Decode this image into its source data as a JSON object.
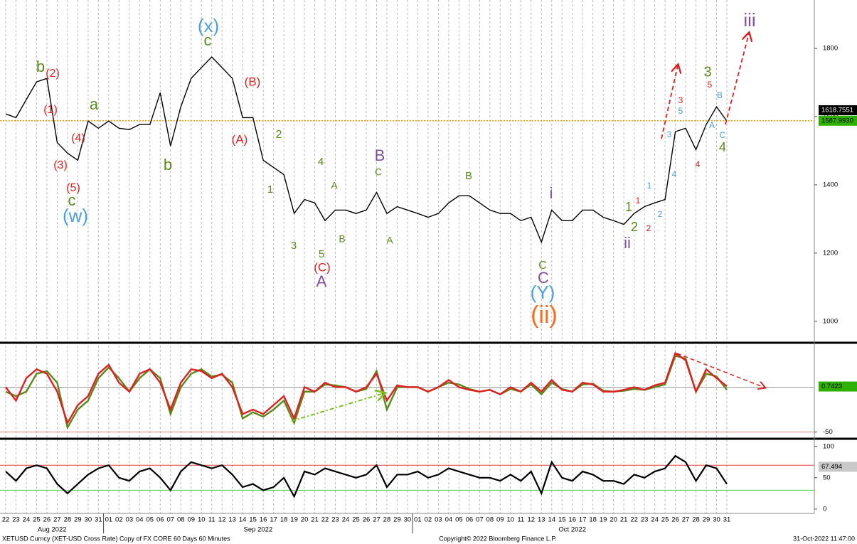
{
  "footer": {
    "left": "XETUSD Curncy (XET-USD Cross Rate) Copy of FX CORE 60 Days 60 Minutes",
    "center": "Copyright© 2022 Bloomberg Finance L.P.",
    "right": "31-Oct-2022 11:47:00"
  },
  "chart_data": [
    {
      "type": "line",
      "categories": [
        "22",
        "23",
        "24",
        "25",
        "26",
        "27",
        "28",
        "29",
        "30",
        "31",
        "01",
        "02",
        "03",
        "04",
        "05",
        "06",
        "07",
        "08",
        "09",
        "10",
        "11",
        "12",
        "13",
        "14",
        "15",
        "16",
        "17",
        "18",
        "19",
        "20",
        "21",
        "22",
        "23",
        "24",
        "25",
        "26",
        "27",
        "28",
        "29",
        "30",
        "01",
        "02",
        "03",
        "04",
        "05",
        "06",
        "07",
        "08",
        "09",
        "10",
        "11",
        "12",
        "13",
        "14",
        "15",
        "16",
        "17",
        "18",
        "19",
        "20",
        "21",
        "22",
        "23",
        "24",
        "25",
        "26",
        "27",
        "28",
        "29",
        "30",
        "31"
      ],
      "months": [
        "Aug 2022",
        "Sep 2022",
        "Oct 2022"
      ],
      "values": [
        1608,
        1597,
        1650,
        1702,
        1712,
        1524,
        1493,
        1472,
        1587,
        1566,
        1587,
        1566,
        1562,
        1577,
        1577,
        1670,
        1514,
        1629,
        1712,
        1744,
        1775,
        1744,
        1712,
        1597,
        1597,
        1472,
        1451,
        1430,
        1316,
        1357,
        1347,
        1295,
        1326,
        1326,
        1316,
        1326,
        1378,
        1316,
        1336,
        1326,
        1316,
        1305,
        1316,
        1347,
        1368,
        1368,
        1347,
        1326,
        1316,
        1316,
        1295,
        1305,
        1232,
        1326,
        1295,
        1295,
        1326,
        1326,
        1305,
        1295,
        1284,
        1316,
        1336,
        1347,
        1357,
        1556,
        1566,
        1503,
        1577,
        1629,
        1587
      ],
      "color": "#000000",
      "ylim": [
        939,
        1942
      ],
      "yticks": [
        1000,
        1200,
        1400,
        1600,
        1800
      ],
      "grid": true,
      "price_labels": [
        {
          "value": 1618.7551,
          "label": "1618.7551",
          "color": "#000000"
        },
        {
          "value": 1587.993,
          "label": "1587.9930",
          "color": "#2db000"
        }
      ],
      "level_color": "#f0a000",
      "annotations": [
        {
          "text": "(x)",
          "color": "#4aa0e0"
        },
        {
          "text": "c",
          "color": "#5a8a1a"
        },
        {
          "text": "b",
          "color": "#5a8a1a"
        },
        {
          "text": "(2)",
          "color": "#e02020"
        },
        {
          "text": "(1)",
          "color": "#e02020"
        },
        {
          "text": "(4)",
          "color": "#e02020"
        },
        {
          "text": "(3)",
          "color": "#e02020"
        },
        {
          "text": "(5)",
          "color": "#e02020"
        },
        {
          "text": "c",
          "color": "#5a8a1a"
        },
        {
          "text": "(w)",
          "color": "#4aa0e0"
        },
        {
          "text": "a",
          "color": "#5a8a1a"
        },
        {
          "text": "b",
          "color": "#5a8a1a"
        },
        {
          "text": "(B)",
          "color": "#e02020"
        },
        {
          "text": "(A)",
          "color": "#e02020"
        },
        {
          "text": "2",
          "color": "#5a8a1a"
        },
        {
          "text": "1",
          "color": "#5a8a1a"
        },
        {
          "text": "3",
          "color": "#5a8a1a"
        },
        {
          "text": "4",
          "color": "#5a8a1a"
        },
        {
          "text": "5",
          "color": "#5a8a1a"
        },
        {
          "text": "(C)",
          "color": "#e02020"
        },
        {
          "text": "A",
          "color": "#8050a0"
        },
        {
          "text": "A",
          "color": "#5a8a1a"
        },
        {
          "text": "B",
          "color": "#5a8a1a"
        },
        {
          "text": "B",
          "color": "#8050a0"
        },
        {
          "text": "C",
          "color": "#5a8a1a"
        },
        {
          "text": "A",
          "color": "#5a8a1a"
        },
        {
          "text": "B",
          "color": "#5a8a1a"
        },
        {
          "text": "i",
          "color": "#8050a0"
        },
        {
          "text": "C",
          "color": "#5a8a1a"
        },
        {
          "text": "C",
          "color": "#8050a0"
        },
        {
          "text": "(Y)",
          "color": "#4aa0e0"
        },
        {
          "text": "(ii)",
          "color": "#ff6a1a"
        },
        {
          "text": "1",
          "color": "#5a8a1a"
        },
        {
          "text": "2",
          "color": "#5a8a1a"
        },
        {
          "text": "1",
          "color": "#e02020"
        },
        {
          "text": "2",
          "color": "#e02020"
        },
        {
          "text": "1",
          "color": "#4aa0e0"
        },
        {
          "text": "2",
          "color": "#4aa0e0"
        },
        {
          "text": "ii",
          "color": "#8050a0"
        },
        {
          "text": "3",
          "color": "#4aa0e0"
        },
        {
          "text": "4",
          "color": "#4aa0e0"
        },
        {
          "text": "3",
          "color": "#e02020"
        },
        {
          "text": "5",
          "color": "#4aa0e0"
        },
        {
          "text": "4",
          "color": "#e02020"
        },
        {
          "text": "5",
          "color": "#e02020"
        },
        {
          "text": "3",
          "color": "#5a8a1a"
        },
        {
          "text": "B",
          "color": "#4aa0e0"
        },
        {
          "text": "A",
          "color": "#4aa0e0"
        },
        {
          "text": "C",
          "color": "#4aa0e0"
        },
        {
          "text": "4",
          "color": "#5a8a1a"
        },
        {
          "text": "iii",
          "color": "#8050a0"
        }
      ]
    },
    {
      "type": "line",
      "series": [
        {
          "color": "#5a8a1a",
          "values": [
            -5,
            -10,
            -5,
            15,
            18,
            5,
            -45,
            -25,
            -15,
            10,
            22,
            10,
            -5,
            10,
            20,
            10,
            -30,
            0,
            15,
            20,
            12,
            14,
            5,
            -35,
            -28,
            -33,
            -25,
            -15,
            -40,
            -5,
            -5,
            3,
            2,
            0,
            -5,
            -2,
            18,
            -25,
            0,
            0,
            0,
            -5,
            0,
            5,
            3,
            -2,
            -5,
            -3,
            -8,
            -2,
            -5,
            3,
            -8,
            5,
            -2,
            -5,
            3,
            4,
            -4,
            -5,
            -4,
            -2,
            -3,
            0,
            3,
            35,
            32,
            -5,
            15,
            12,
            -3
          ]
        },
        {
          "color": "#e02020",
          "values": [
            0,
            -15,
            10,
            20,
            15,
            -5,
            -40,
            -20,
            -10,
            15,
            25,
            5,
            -5,
            15,
            20,
            5,
            -25,
            5,
            20,
            18,
            10,
            15,
            0,
            -30,
            -25,
            -30,
            -20,
            -10,
            -35,
            0,
            -5,
            5,
            0,
            0,
            -5,
            0,
            15,
            -15,
            2,
            0,
            0,
            -5,
            0,
            8,
            0,
            -3,
            -5,
            -3,
            -8,
            0,
            -5,
            5,
            -5,
            8,
            -3,
            -5,
            5,
            3,
            -5,
            -5,
            -3,
            0,
            -3,
            2,
            5,
            38,
            30,
            -5,
            20,
            10,
            1
          ]
        }
      ],
      "ylim": [
        -56,
        48
      ],
      "yticks": [
        -50
      ],
      "value_label": {
        "value": 0.7423,
        "label": "0.7423",
        "color": "#2db000"
      }
    },
    {
      "type": "line",
      "values": [
        60,
        45,
        65,
        70,
        65,
        40,
        25,
        40,
        55,
        65,
        70,
        50,
        45,
        60,
        65,
        50,
        30,
        60,
        75,
        70,
        65,
        70,
        55,
        35,
        40,
        30,
        35,
        50,
        20,
        60,
        55,
        65,
        60,
        55,
        50,
        55,
        70,
        35,
        55,
        55,
        60,
        50,
        55,
        65,
        60,
        55,
        50,
        50,
        45,
        55,
        45,
        60,
        25,
        75,
        50,
        45,
        60,
        55,
        45,
        45,
        40,
        55,
        50,
        60,
        65,
        85,
        75,
        45,
        70,
        65,
        40
      ],
      "color": "#000000",
      "ylim": [
        -7,
        110
      ],
      "yticks": [
        0,
        50,
        100
      ],
      "levels": [
        {
          "value": 70,
          "color": "#e04040"
        },
        {
          "value": 30,
          "color": "#40d040"
        }
      ],
      "value_label": {
        "value": 67.494,
        "label": "67.494",
        "color": "#c8c8c8"
      }
    }
  ]
}
